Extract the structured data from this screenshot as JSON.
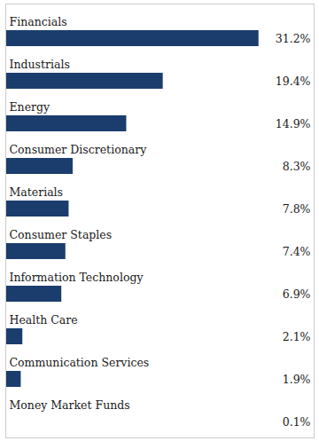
{
  "chart_data": {
    "type": "bar",
    "orientation": "horizontal",
    "categories": [
      "Financials",
      "Industrials",
      "Energy",
      "Consumer Discretionary",
      "Materials",
      "Consumer Staples",
      "Information Technology",
      "Health Care",
      "Communication Services",
      "Money Market Funds"
    ],
    "values": [
      31.2,
      19.4,
      14.9,
      8.3,
      7.8,
      7.4,
      6.9,
      2.1,
      1.9,
      0.1
    ],
    "value_labels": [
      "31.2%",
      "19.4%",
      "14.9%",
      "8.3%",
      "7.8%",
      "7.4%",
      "6.9%",
      "2.1%",
      "1.9%",
      "0.1%"
    ],
    "data_labels": true,
    "color": "#1b3d6e",
    "xlim": [
      0,
      38
    ],
    "tick_labels": false,
    "grid": false
  }
}
